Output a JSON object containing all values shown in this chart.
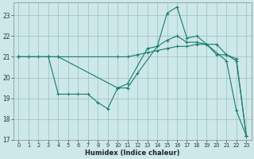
{
  "xlabel": "Humidex (Indice chaleur)",
  "background_color": "#cce8e8",
  "grid_color": "#9ebebe",
  "line_color": "#1a7a6e",
  "xlim": [
    -0.5,
    23.5
  ],
  "ylim": [
    17,
    23.6
  ],
  "yticks": [
    17,
    18,
    19,
    20,
    21,
    22,
    23
  ],
  "xticks": [
    0,
    1,
    2,
    3,
    4,
    5,
    6,
    7,
    8,
    9,
    10,
    11,
    12,
    13,
    14,
    15,
    16,
    17,
    18,
    19,
    20,
    21,
    22,
    23
  ],
  "series": [
    {
      "x": [
        0,
        1,
        2,
        3,
        4,
        10,
        11,
        12,
        13,
        14,
        15,
        16,
        17,
        18,
        19,
        20,
        21,
        22,
        23
      ],
      "y": [
        21,
        21,
        21,
        21,
        21,
        21,
        21,
        21.1,
        21.2,
        21.3,
        21.4,
        21.5,
        21.5,
        21.6,
        21.6,
        21.1,
        21.1,
        20.9,
        17.2
      ]
    },
    {
      "x": [
        0,
        3,
        4,
        5,
        6,
        7,
        8,
        9,
        10,
        11,
        13,
        14,
        15,
        16,
        17,
        18,
        21,
        22,
        23
      ],
      "y": [
        21,
        21,
        19.2,
        19.2,
        19.2,
        19.2,
        18.8,
        18.5,
        19.5,
        19.7,
        21.4,
        21.5,
        23.1,
        23.4,
        21.9,
        22.0,
        20.8,
        18.4,
        17.2
      ]
    },
    {
      "x": [
        0,
        3,
        4,
        10,
        11,
        12,
        14,
        15,
        16,
        17,
        18,
        19,
        20,
        21,
        22,
        23
      ],
      "y": [
        21,
        21,
        21,
        19.5,
        19.5,
        20.2,
        21.5,
        21.8,
        22.0,
        21.7,
        21.7,
        21.6,
        21.6,
        21.1,
        20.8,
        17.2
      ]
    }
  ]
}
